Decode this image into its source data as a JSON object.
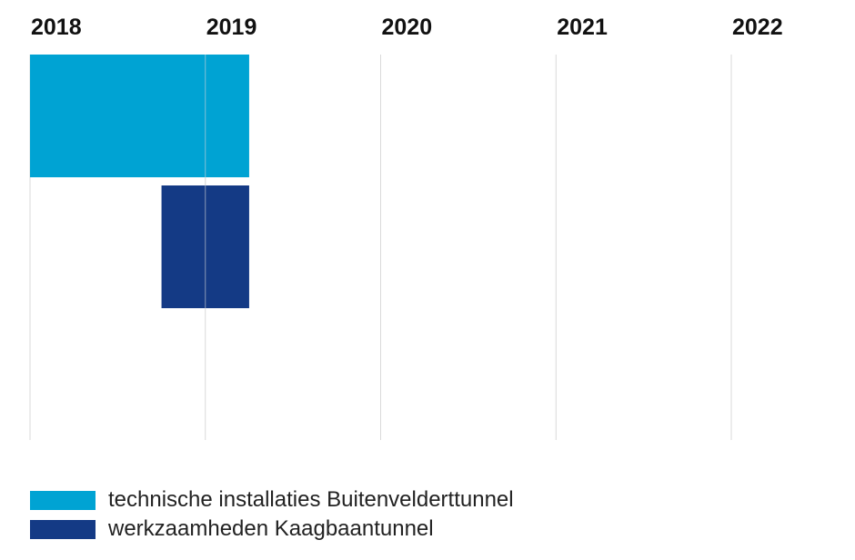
{
  "chart_data": {
    "type": "gantt",
    "title": "",
    "x_ticks": [
      "2018",
      "2019",
      "2020",
      "2021",
      "2022"
    ],
    "xlim": [
      2018,
      2022.7
    ],
    "grid": true,
    "legend_position": "bottom-left",
    "series": [
      {
        "name": "technische installaties Buitenvelderttunnel",
        "start": 2018.0,
        "end": 2019.25,
        "color": "#00a3d3"
      },
      {
        "name": "werkzaamheden Kaagbaantunnel",
        "start": 2018.75,
        "end": 2019.25,
        "color": "#143a85"
      }
    ]
  },
  "legend": {
    "items": [
      {
        "label": "technische installaties Buitenvelderttunnel",
        "color": "#00a3d3"
      },
      {
        "label": "werkzaamheden Kaagbaantunnel",
        "color": "#143a85"
      }
    ]
  }
}
